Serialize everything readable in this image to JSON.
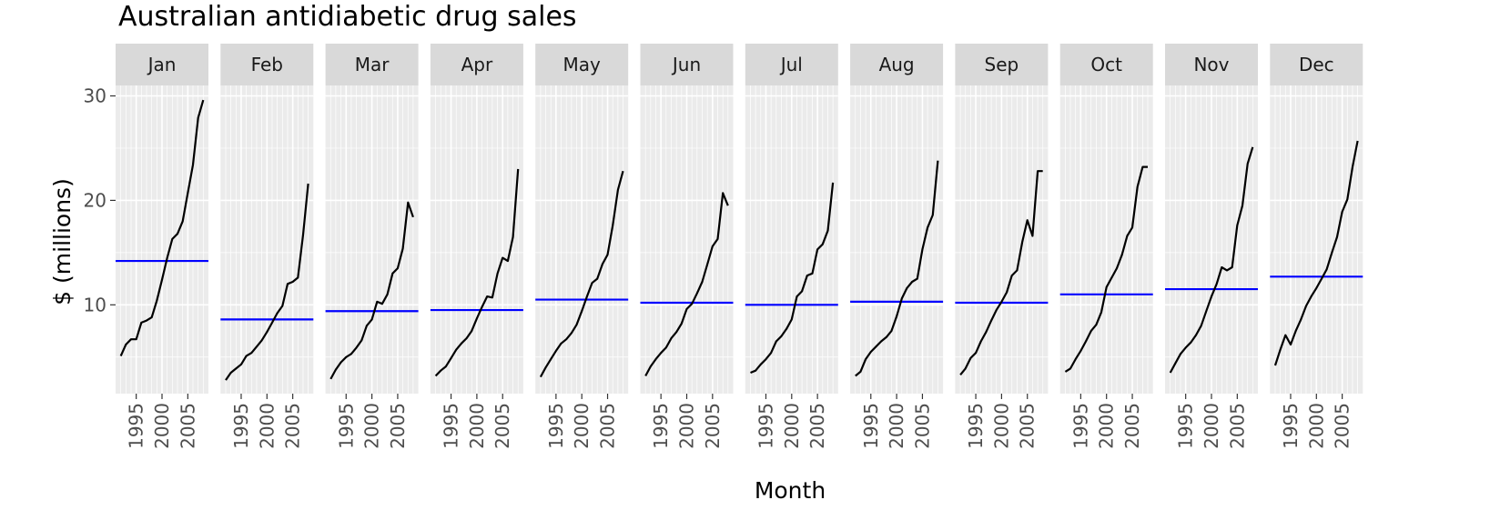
{
  "chart_data": {
    "type": "line",
    "title": "Australian antidiabetic drug sales",
    "xlabel": "Month",
    "ylabel": "$ (millions)",
    "ylim": [
      1.5,
      31
    ],
    "y_ticks": [
      10,
      20,
      30
    ],
    "xlim": [
      1991,
      2009
    ],
    "x_ticks": [
      1995,
      2000,
      2005
    ],
    "facet_by": "month",
    "grid": true,
    "colors": {
      "series": "#000000",
      "mean": "#0000ff",
      "panel_bg": "#ebebeb",
      "grid": "#ffffff",
      "strip_bg": "#d9d9d9"
    },
    "facets": [
      {
        "label": "Jan",
        "mean": 14.2,
        "x": [
          1992,
          1993,
          1994,
          1995,
          1996,
          1997,
          1998,
          1999,
          2000,
          2001,
          2002,
          2003,
          2004,
          2005,
          2006,
          2007,
          2008
        ],
        "y": [
          5.1,
          6.2,
          6.7,
          6.7,
          8.3,
          8.5,
          8.8,
          10.4,
          12.4,
          14.5,
          16.3,
          16.8,
          18.0,
          20.7,
          23.4,
          27.9,
          29.6
        ]
      },
      {
        "label": "Feb",
        "mean": 8.6,
        "x": [
          1992,
          1993,
          1994,
          1995,
          1996,
          1997,
          1998,
          1999,
          2000,
          2001,
          2002,
          2003,
          2004,
          2005,
          2006,
          2007,
          2008
        ],
        "y": [
          2.8,
          3.5,
          3.9,
          4.3,
          5.1,
          5.4,
          6.0,
          6.6,
          7.4,
          8.3,
          9.2,
          9.9,
          12.0,
          12.2,
          12.6,
          16.7,
          21.6
        ]
      },
      {
        "label": "Mar",
        "mean": 9.4,
        "x": [
          1992,
          1993,
          1994,
          1995,
          1996,
          1997,
          1998,
          1999,
          2000,
          2001,
          2002,
          2003,
          2004,
          2005,
          2006,
          2007,
          2008
        ],
        "y": [
          2.9,
          3.8,
          4.5,
          5.0,
          5.3,
          5.9,
          6.6,
          8.0,
          8.6,
          10.3,
          10.1,
          11.0,
          13.0,
          13.5,
          15.4,
          19.8,
          18.4
        ]
      },
      {
        "label": "Apr",
        "mean": 9.5,
        "x": [
          1992,
          1993,
          1994,
          1995,
          1996,
          1997,
          1998,
          1999,
          2000,
          2001,
          2002,
          2003,
          2004,
          2005,
          2006,
          2007,
          2008
        ],
        "y": [
          3.2,
          3.7,
          4.1,
          4.9,
          5.7,
          6.3,
          6.8,
          7.5,
          8.7,
          9.8,
          10.8,
          10.7,
          13.0,
          14.5,
          14.2,
          16.5,
          23.0
        ]
      },
      {
        "label": "May",
        "mean": 10.5,
        "x": [
          1992,
          1993,
          1994,
          1995,
          1996,
          1997,
          1998,
          1999,
          2000,
          2001,
          2002,
          2003,
          2004,
          2005,
          2006,
          2007,
          2008
        ],
        "y": [
          3.1,
          4.0,
          4.8,
          5.6,
          6.3,
          6.7,
          7.3,
          8.1,
          9.4,
          10.8,
          12.1,
          12.5,
          13.9,
          14.8,
          17.6,
          21.0,
          22.8
        ]
      },
      {
        "label": "Jun",
        "mean": 10.2,
        "x": [
          1992,
          1993,
          1994,
          1995,
          1996,
          1997,
          1998,
          1999,
          2000,
          2001,
          2002,
          2003,
          2004,
          2005,
          2006,
          2007,
          2008
        ],
        "y": [
          3.2,
          4.1,
          4.8,
          5.4,
          5.9,
          6.8,
          7.4,
          8.2,
          9.6,
          10.1,
          11.1,
          12.2,
          13.9,
          15.6,
          16.3,
          20.7,
          19.5
        ]
      },
      {
        "label": "Jul",
        "mean": 10.0,
        "x": [
          1992,
          1993,
          1994,
          1995,
          1996,
          1997,
          1998,
          1999,
          2000,
          2001,
          2002,
          2003,
          2004,
          2005,
          2006,
          2007,
          2008
        ],
        "y": [
          3.5,
          3.7,
          4.3,
          4.8,
          5.4,
          6.5,
          7.0,
          7.7,
          8.6,
          10.8,
          11.3,
          12.8,
          13.0,
          15.3,
          15.8,
          17.1,
          21.7
        ]
      },
      {
        "label": "Aug",
        "mean": 10.3,
        "x": [
          1992,
          1993,
          1994,
          1995,
          1996,
          1997,
          1998,
          1999,
          2000,
          2001,
          2002,
          2003,
          2004,
          2005,
          2006,
          2007,
          2008
        ],
        "y": [
          3.2,
          3.6,
          4.8,
          5.5,
          6.0,
          6.5,
          6.9,
          7.5,
          8.9,
          10.6,
          11.6,
          12.2,
          12.5,
          15.3,
          17.4,
          18.6,
          23.8
        ]
      },
      {
        "label": "Sep",
        "mean": 10.2,
        "x": [
          1992,
          1993,
          1994,
          1995,
          1996,
          1997,
          1998,
          1999,
          2000,
          2001,
          2002,
          2003,
          2004,
          2005,
          2006,
          2007,
          2008
        ],
        "y": [
          3.3,
          3.9,
          4.9,
          5.4,
          6.5,
          7.4,
          8.5,
          9.5,
          10.3,
          11.2,
          12.8,
          13.3,
          16.0,
          18.1,
          16.6,
          22.8,
          22.8
        ]
      },
      {
        "label": "Oct",
        "mean": 11.0,
        "x": [
          1992,
          1993,
          1994,
          1995,
          1996,
          1997,
          1998,
          1999,
          2000,
          2001,
          2002,
          2003,
          2004,
          2005,
          2006,
          2007,
          2008
        ],
        "y": [
          3.6,
          3.9,
          4.8,
          5.6,
          6.5,
          7.5,
          8.1,
          9.3,
          11.7,
          12.6,
          13.5,
          14.8,
          16.6,
          17.4,
          21.3,
          23.2,
          23.2
        ]
      },
      {
        "label": "Nov",
        "mean": 11.5,
        "x": [
          1992,
          1993,
          1994,
          1995,
          1996,
          1997,
          1998,
          1999,
          2000,
          2001,
          2002,
          2003,
          2004,
          2005,
          2006,
          2007,
          2008
        ],
        "y": [
          3.5,
          4.4,
          5.3,
          5.9,
          6.4,
          7.1,
          8.0,
          9.4,
          10.8,
          12.0,
          13.6,
          13.3,
          13.6,
          17.6,
          19.5,
          23.5,
          25.1
        ]
      },
      {
        "label": "Dec",
        "mean": 12.7,
        "x": [
          1992,
          1993,
          1994,
          1995,
          1996,
          1997,
          1998,
          1999,
          2000,
          2001,
          2002,
          2003,
          2004,
          2005,
          2006,
          2007,
          2008
        ],
        "y": [
          4.2,
          5.7,
          7.1,
          6.2,
          7.5,
          8.6,
          9.9,
          10.8,
          11.6,
          12.5,
          13.4,
          15.0,
          16.5,
          18.9,
          20.1,
          23.2,
          25.7
        ]
      }
    ]
  }
}
